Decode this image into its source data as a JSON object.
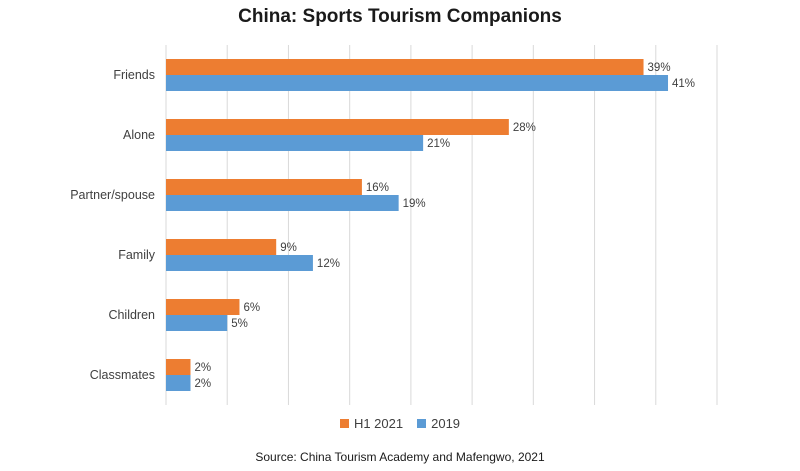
{
  "chart_data": {
    "type": "bar",
    "orientation": "horizontal",
    "title": "China: Sports Tourism Companions",
    "categories": [
      "Friends",
      "Alone",
      "Partner/spouse",
      "Family",
      "Children",
      "Classmates"
    ],
    "series": [
      {
        "name": "H1 2021",
        "color": "#ED7D31",
        "values": [
          39,
          28,
          16,
          9,
          6,
          2
        ],
        "labels": [
          "39%",
          "28%",
          "16%",
          "9%",
          "6%",
          "2%"
        ]
      },
      {
        "name": "2019",
        "color": "#5B9BD5",
        "values": [
          41,
          21,
          19,
          12,
          5,
          2
        ],
        "labels": [
          "41%",
          "21%",
          "19%",
          "12%",
          "5%",
          "2%"
        ]
      }
    ],
    "xlim": [
      0,
      45
    ],
    "grid": true,
    "legend_position": "bottom",
    "source": "Source: China Tourism Academy and Mafengwo, 2021"
  }
}
